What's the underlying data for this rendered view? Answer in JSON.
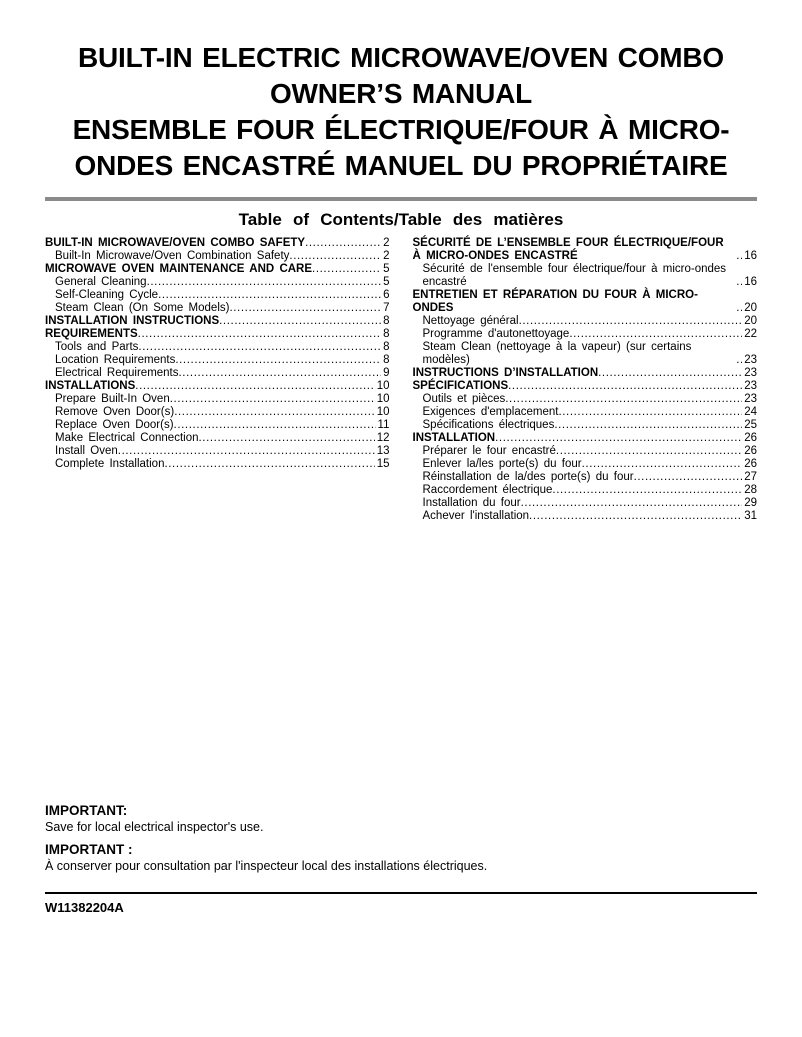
{
  "colors": {
    "divider_gray": "#8a8a8a",
    "footer_rule_black": "#000000"
  },
  "header": {
    "title_lines": [
      "BUILT-IN ELECTRIC MICROWAVE/OVEN COMBO",
      "OWNER’S MANUAL",
      "ENSEMBLE FOUR ÉLECTRIQUE/FOUR À MICRO-",
      "ONDES ENCASTRÉ MANUEL DU PROPRIÉTAIRE"
    ]
  },
  "toc": {
    "title": "Table of Contents/Table des matières",
    "left_column": [
      {
        "type": "section",
        "label": "BUILT-IN MICROWAVE/OVEN COMBO SAFETY",
        "page": "2"
      },
      {
        "type": "entry",
        "label": "Built-In Microwave/Oven Combination Safety",
        "page": "2"
      },
      {
        "type": "section",
        "label": "MICROWAVE OVEN MAINTENANCE AND CARE",
        "page": "5"
      },
      {
        "type": "entry",
        "label": "General Cleaning",
        "page": "5"
      },
      {
        "type": "entry",
        "label": "Self-Cleaning Cycle",
        "page": "6"
      },
      {
        "type": "entry",
        "label": "Steam Clean (On Some Models)",
        "page": "7"
      },
      {
        "type": "section",
        "label": "INSTALLATION INSTRUCTIONS",
        "page": "8"
      },
      {
        "type": "section",
        "label": "REQUIREMENTS",
        "page": "8"
      },
      {
        "type": "entry",
        "label": "Tools and Parts",
        "page": "8"
      },
      {
        "type": "entry",
        "label": "Location Requirements",
        "page": "8"
      },
      {
        "type": "entry",
        "label": "Electrical Requirements",
        "page": "9"
      },
      {
        "type": "section",
        "label": "INSTALLATIONS",
        "page": "10"
      },
      {
        "type": "entry",
        "label": "Prepare Built-In Oven",
        "page": "10"
      },
      {
        "type": "entry",
        "label": "Remove Oven Door(s)",
        "page": "10"
      },
      {
        "type": "entry",
        "label": "Replace Oven Door(s)",
        "page": "11"
      },
      {
        "type": "entry",
        "label": "Make Electrical Connection",
        "page": "12"
      },
      {
        "type": "entry",
        "label": "Install Oven",
        "page": "13"
      },
      {
        "type": "entry",
        "label": "Complete Installation",
        "page": "15"
      }
    ],
    "right_column": [
      {
        "type": "section",
        "label": "SÉCURITÉ DE L’ENSEMBLE FOUR ÉLECTRIQUE/FOUR À MICRO-ONDES ENCASTRÉ",
        "page": "16"
      },
      {
        "type": "entry",
        "label": "Sécurité de l'ensemble four électrique/four à micro-ondes encastré",
        "page": "16"
      },
      {
        "type": "section",
        "label": "ENTRETIEN ET RÉPARATION DU FOUR À MICRO-ONDES",
        "page": "20"
      },
      {
        "type": "entry",
        "label": "Nettoyage général",
        "page": "20"
      },
      {
        "type": "entry",
        "label": "Programme d'autonettoyage",
        "page": "22"
      },
      {
        "type": "entry",
        "label": "Steam Clean (nettoyage à la vapeur) (sur certains modèles)",
        "page": "23"
      },
      {
        "type": "section",
        "label": "INSTRUCTIONS D’INSTALLATION",
        "page": "23"
      },
      {
        "type": "section",
        "label": "SPÉCIFICATIONS",
        "page": "23"
      },
      {
        "type": "entry",
        "label": "Outils et pièces",
        "page": "23"
      },
      {
        "type": "entry",
        "label": "Exigences d'emplacement",
        "page": "24"
      },
      {
        "type": "entry",
        "label": "Spécifications électriques",
        "page": "25"
      },
      {
        "type": "section",
        "label": "INSTALLATION",
        "page": "26"
      },
      {
        "type": "entry",
        "label": "Préparer le four encastré",
        "page": "26"
      },
      {
        "type": "entry",
        "label": "Enlever la/les porte(s) du four",
        "page": "26"
      },
      {
        "type": "entry",
        "label": "Réinstallation de la/des porte(s) du four",
        "page": "27"
      },
      {
        "type": "entry",
        "label": "Raccordement électrique",
        "page": "28"
      },
      {
        "type": "entry",
        "label": "Installation du four",
        "page": "29"
      },
      {
        "type": "entry",
        "label": "Achever l'installation",
        "page": "31"
      }
    ]
  },
  "notices": [
    {
      "heading": "IMPORTANT:",
      "body": "Save for local electrical inspector's use."
    },
    {
      "heading": "IMPORTANT :",
      "body": "À conserver pour consultation par l'inspecteur local des installations électriques."
    }
  ],
  "footer": {
    "doc_number": "W11382204A"
  }
}
